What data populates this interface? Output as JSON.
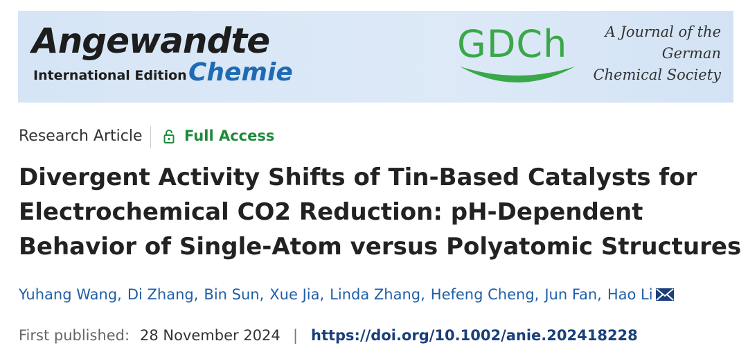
{
  "banner": {
    "journal_name": "Angewandte",
    "edition": "International Edition",
    "journal_subname": "Chemie",
    "society_logo": "GDCh",
    "society_text": [
      "A Journal of the",
      "German",
      "Chemical Society"
    ]
  },
  "article": {
    "type": "Research Article",
    "access": "Full Access",
    "title_lines": [
      "Divergent Activity Shifts of Tin-Based Catalysts for",
      "Electrochemical CO2 Reduction: pH-Dependent",
      "Behavior of Single-Atom versus Polyatomic Structures"
    ],
    "authors": [
      "Yuhang Wang",
      "Di Zhang",
      "Bin Sun",
      "Xue Jia",
      "Linda Zhang",
      "Hefeng Cheng",
      "Jun Fan",
      "Hao Li"
    ],
    "author_separator": ",",
    "published_label": "First published:",
    "published_date": "28 November 2024",
    "divider": "|",
    "doi": "https://doi.org/10.1002/anie.202418228"
  }
}
